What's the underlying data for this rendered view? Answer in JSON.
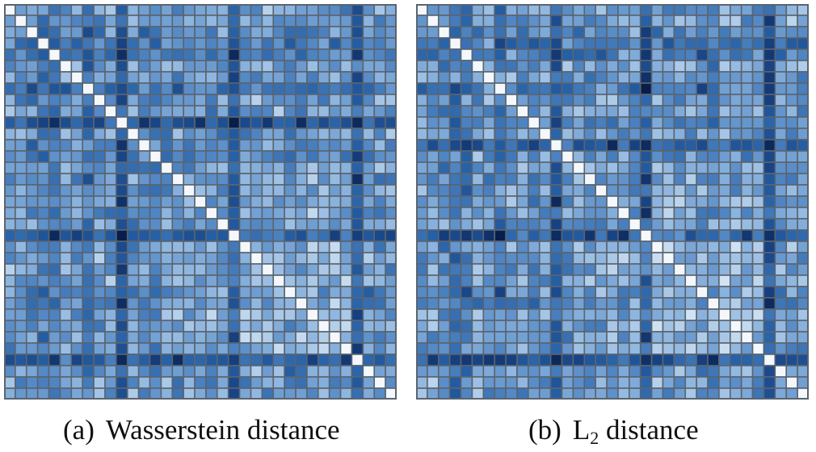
{
  "chart_data": [
    {
      "type": "heatmap",
      "panel_label": "(a)",
      "title": "Wasserstein distance",
      "n": 35,
      "colormap": "Blues_r",
      "dark_rows": [
        3,
        10,
        20,
        31
      ],
      "dark_cols": [
        4,
        10,
        20,
        31
      ],
      "medium_rows": [
        7,
        12,
        25
      ],
      "medium_cols": [
        2,
        7,
        13,
        26
      ],
      "light_block": {
        "rows": [
          14,
          30
        ],
        "cols": [
          21,
          30
        ]
      },
      "diagonal_value": 0,
      "seed": 11
    },
    {
      "type": "heatmap",
      "panel_label": "(b)",
      "title_main": "L",
      "title_sub": "2",
      "title_rest": " distance",
      "n": 35,
      "colormap": "Blues_r",
      "dark_rows": [
        3,
        12,
        20,
        31
      ],
      "dark_cols": [
        4,
        12,
        20,
        31
      ],
      "medium_rows": [
        7,
        10,
        25
      ],
      "medium_cols": [
        2,
        7,
        15,
        26
      ],
      "light_block": {
        "rows": [
          14,
          30
        ],
        "cols": [
          21,
          30
        ]
      },
      "diagonal_value": 0,
      "seed": 23
    }
  ],
  "colors": {
    "grid_line": "#5a6470",
    "border": "#5a6470",
    "darkest": "#08224c",
    "lightest": "#f4f8fc"
  }
}
